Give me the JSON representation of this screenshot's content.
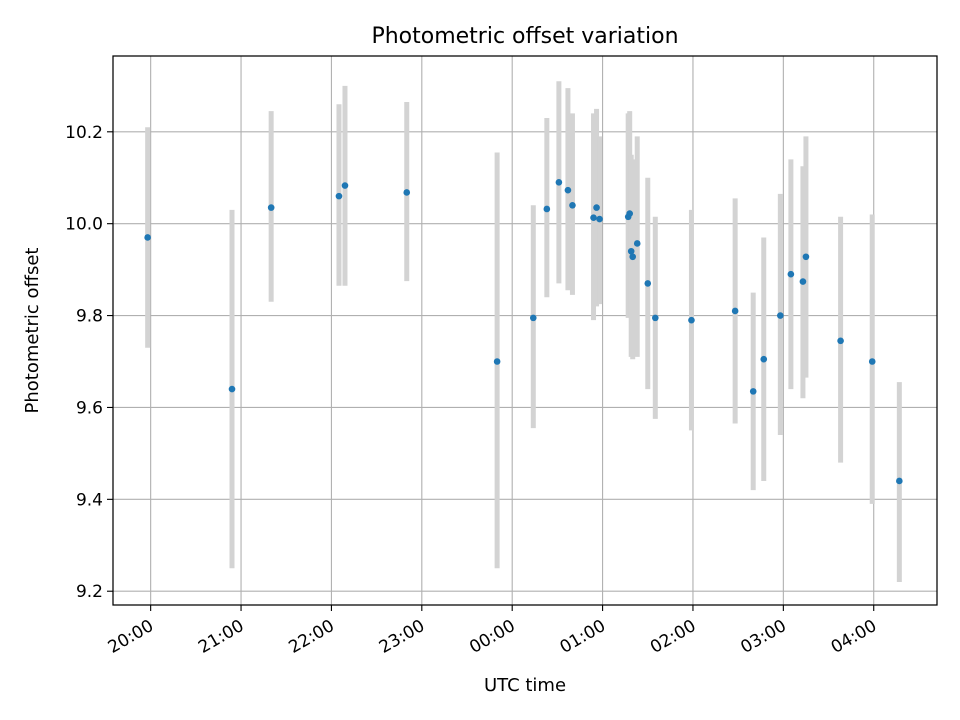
{
  "chart_data": {
    "type": "scatter",
    "title": "Photometric offset variation",
    "xlabel": "UTC time",
    "ylabel": "Photometric offset",
    "x_axis_kind": "time",
    "x_ticks": [
      "20:00",
      "21:00",
      "22:00",
      "23:00",
      "00:00",
      "01:00",
      "02:00",
      "03:00",
      "04:00"
    ],
    "xlim": [
      "19:35",
      "04:42"
    ],
    "y_ticks": [
      "9.2",
      "9.4",
      "9.6",
      "9.8",
      "10.0",
      "10.2"
    ],
    "ylim": [
      9.17,
      10.365
    ],
    "grid": true,
    "colors": {
      "points": "#1f77b4",
      "errorbars": "#d3d3d3",
      "grid": "#b0b0b0"
    },
    "points": [
      {
        "time": "19:58",
        "y": 9.97,
        "ymin": 9.73,
        "ymax": 10.21
      },
      {
        "time": "20:54",
        "y": 9.64,
        "ymin": 9.25,
        "ymax": 10.03
      },
      {
        "time": "21:20",
        "y": 10.035,
        "ymin": 9.83,
        "ymax": 10.245
      },
      {
        "time": "22:05",
        "y": 10.06,
        "ymin": 9.865,
        "ymax": 10.26
      },
      {
        "time": "22:09",
        "y": 10.083,
        "ymin": 9.865,
        "ymax": 10.3
      },
      {
        "time": "22:50",
        "y": 10.068,
        "ymin": 9.875,
        "ymax": 10.265
      },
      {
        "time": "23:50",
        "y": 9.7,
        "ymin": 9.25,
        "ymax": 10.155
      },
      {
        "time": "00:14",
        "y": 9.795,
        "ymin": 9.555,
        "ymax": 10.04
      },
      {
        "time": "00:23",
        "y": 10.032,
        "ymin": 9.84,
        "ymax": 10.23
      },
      {
        "time": "00:31",
        "y": 10.09,
        "ymin": 9.87,
        "ymax": 10.31
      },
      {
        "time": "00:37",
        "y": 10.073,
        "ymin": 9.855,
        "ymax": 10.295
      },
      {
        "time": "00:40",
        "y": 10.04,
        "ymin": 9.845,
        "ymax": 10.24
      },
      {
        "time": "00:54",
        "y": 10.013,
        "ymin": 9.79,
        "ymax": 10.24
      },
      {
        "time": "00:56",
        "y": 10.035,
        "ymin": 9.82,
        "ymax": 10.25
      },
      {
        "time": "00:58",
        "y": 10.01,
        "ymin": 9.825,
        "ymax": 10.19
      },
      {
        "time": "01:17",
        "y": 10.015,
        "ymin": 9.795,
        "ymax": 10.24
      },
      {
        "time": "01:18",
        "y": 10.022,
        "ymin": 9.8,
        "ymax": 10.245
      },
      {
        "time": "01:19",
        "y": 9.94,
        "ymin": 9.71,
        "ymax": 10.15
      },
      {
        "time": "01:20",
        "y": 9.928,
        "ymin": 9.705,
        "ymax": 10.14
      },
      {
        "time": "01:23",
        "y": 9.957,
        "ymin": 9.71,
        "ymax": 10.19
      },
      {
        "time": "01:30",
        "y": 9.87,
        "ymin": 9.64,
        "ymax": 10.1
      },
      {
        "time": "01:35",
        "y": 9.795,
        "ymin": 9.575,
        "ymax": 10.015
      },
      {
        "time": "01:59",
        "y": 9.79,
        "ymin": 9.55,
        "ymax": 10.03
      },
      {
        "time": "02:28",
        "y": 9.81,
        "ymin": 9.565,
        "ymax": 10.055
      },
      {
        "time": "02:40",
        "y": 9.635,
        "ymin": 9.42,
        "ymax": 9.85
      },
      {
        "time": "02:47",
        "y": 9.705,
        "ymin": 9.44,
        "ymax": 9.97
      },
      {
        "time": "02:58",
        "y": 9.8,
        "ymin": 9.54,
        "ymax": 10.065
      },
      {
        "time": "03:05",
        "y": 9.89,
        "ymin": 9.64,
        "ymax": 10.14
      },
      {
        "time": "03:13",
        "y": 9.874,
        "ymin": 9.62,
        "ymax": 10.125
      },
      {
        "time": "03:15",
        "y": 9.928,
        "ymin": 9.665,
        "ymax": 10.19
      },
      {
        "time": "03:38",
        "y": 9.745,
        "ymin": 9.48,
        "ymax": 10.015
      },
      {
        "time": "03:59",
        "y": 9.7,
        "ymin": 9.39,
        "ymax": 10.02
      },
      {
        "time": "04:17",
        "y": 9.44,
        "ymin": 9.22,
        "ymax": 9.655
      }
    ]
  }
}
